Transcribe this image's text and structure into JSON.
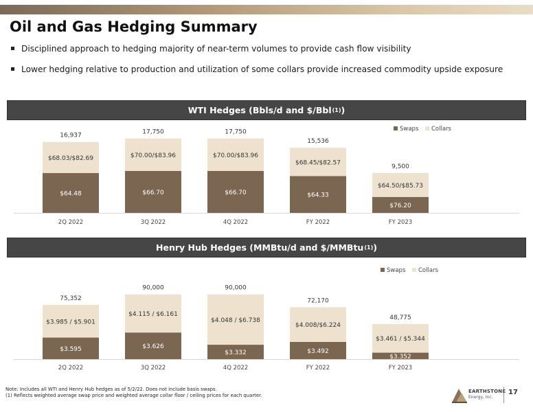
{
  "header": {
    "title": "Oil and Gas Hedging Summary",
    "bullets": [
      "Disciplined approach to hedging majority of near-term volumes to provide cash flow visibility",
      "Lower hedging relative to production and utilization of some collars provide increased commodity upside exposure"
    ]
  },
  "colors": {
    "swaps": "#7b6751",
    "collars": "#eee2cf",
    "header_bg": "#474647",
    "accent_bar": "#9c8566"
  },
  "wti": {
    "title": "WTI Hedges (Bbls/d and $/Bbl",
    "title_sup": "(1)",
    "title_end": ")"
  },
  "henry": {
    "title": "Henry Hub Hedges (MMBtu/d and $/MMBtu",
    "title_sup": "(1)",
    "title_end": ")"
  },
  "chart_data": [
    {
      "type": "bar",
      "stacked": true,
      "categories": [
        "2Q 2022",
        "3Q 2022",
        "4Q 2022",
        "FY 2022",
        "FY 2023"
      ],
      "series": [
        {
          "name": "Swaps",
          "values": [
            9500,
            10000,
            10000,
            8800,
            3800
          ],
          "labels": [
            "$64.48",
            "$66.70",
            "$66.70",
            "$64.33",
            "$76.20"
          ]
        },
        {
          "name": "Collars",
          "values": [
            7437,
            7750,
            7750,
            6736,
            5700
          ],
          "labels": [
            "$68.03/$82.69",
            "$70.00/$83.96",
            "$70.00/$83.96",
            "$68.45/$82.57",
            "$64.50/$85.73"
          ]
        }
      ],
      "totals": [
        "16,937",
        "17,750",
        "17,750",
        "15,536",
        "9,500"
      ],
      "legend": "top-right",
      "ylim": [
        0,
        20000
      ]
    },
    {
      "type": "bar",
      "stacked": true,
      "categories": [
        "2Q 2022",
        "3Q 2022",
        "4Q 2022",
        "FY 2022",
        "FY 2023"
      ],
      "series": [
        {
          "name": "Swaps",
          "values": [
            30000,
            37000,
            20000,
            24000,
            9000
          ],
          "labels": [
            "$3.595",
            "$3.626",
            "$3.332",
            "$3.492",
            "$3.352"
          ]
        },
        {
          "name": "Collars",
          "values": [
            45352,
            53000,
            70000,
            48170,
            39775
          ],
          "labels": [
            "$3.985 / $5.901",
            "$4.115 / $6.161",
            "$4.048 / $6.738",
            "$4.008/$6.224",
            "$3.461 / $5.344"
          ]
        }
      ],
      "totals": [
        "75,352",
        "90,000",
        "90,000",
        "72,170",
        "48,775"
      ],
      "legend": "top-right",
      "ylim": [
        0,
        105000
      ]
    }
  ],
  "footer": {
    "note_line1": "Note: Includes all WTI and Henry Hub hedges as of 5/2/22.  Does not include basis swaps.",
    "note_line2": "(1)  Reflects weighted average swap price and weighted average collar floor / ceiling prices for each quarter.",
    "logo_name": "EARTHSTONE",
    "logo_sub": "Energy, Inc.",
    "page_number": "17"
  }
}
